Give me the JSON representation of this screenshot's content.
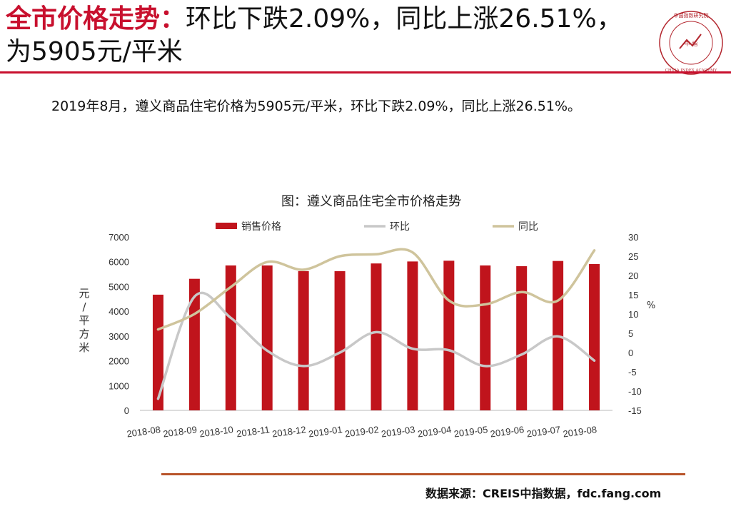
{
  "header": {
    "title_highlight": "全市价格走势：",
    "title_rest": "环比下跌2.09%，同比上涨26.51%，为5905元/平米"
  },
  "summary": "2019年8月，遵义商品住宅价格为5905元/平米，环比下跌2.09%，同比上涨26.51%。",
  "logo": {
    "text_cn": "中国指数研究院",
    "center_text": "中 指",
    "text_en": "CHINA INDEX ACADEMY"
  },
  "colors": {
    "accent": "#c8102e",
    "bar": "#c0141c",
    "mom_line": "#c8c8c8",
    "yoy_line": "#cfc49c",
    "rule_bottom": "#b8542a"
  },
  "source": "数据来源：CREIS中指数据，fdc.fang.com",
  "chart_data": {
    "type": "bar",
    "title": "图：遵义商品住宅全市价格走势",
    "categories": [
      "2018-08",
      "2018-09",
      "2018-10",
      "2018-11",
      "2018-12",
      "2019-01",
      "2019-02",
      "2019-03",
      "2019-04",
      "2019-05",
      "2019-06",
      "2019-07",
      "2019-08"
    ],
    "series": [
      {
        "name": "销售价格",
        "type": "bar",
        "axis": "left",
        "values": [
          4670,
          5310,
          5850,
          5850,
          5620,
          5620,
          5930,
          6010,
          6040,
          5850,
          5820,
          6030,
          5905
        ]
      },
      {
        "name": "环比",
        "type": "line",
        "axis": "right",
        "values": [
          -12,
          14.5,
          9,
          0.5,
          -3.5,
          0,
          5.3,
          1,
          0.6,
          -3.5,
          -0.5,
          4.2,
          -2.09
        ]
      },
      {
        "name": "同比",
        "type": "line",
        "axis": "right",
        "values": [
          6,
          10,
          17,
          23.5,
          21.5,
          25,
          25.5,
          26,
          13.5,
          12.5,
          15.7,
          13.5,
          26.51
        ]
      }
    ],
    "ylabel": "元/平方米",
    "ylabel_right": "%",
    "ylim": [
      0,
      7000
    ],
    "yticks": [
      0,
      1000,
      2000,
      3000,
      4000,
      5000,
      6000,
      7000
    ],
    "ylim_right": [
      -15,
      30
    ],
    "yticks_right": [
      -15,
      -10,
      -5,
      0,
      5,
      10,
      15,
      20,
      25,
      30
    ],
    "legend": "top",
    "grid": false
  }
}
